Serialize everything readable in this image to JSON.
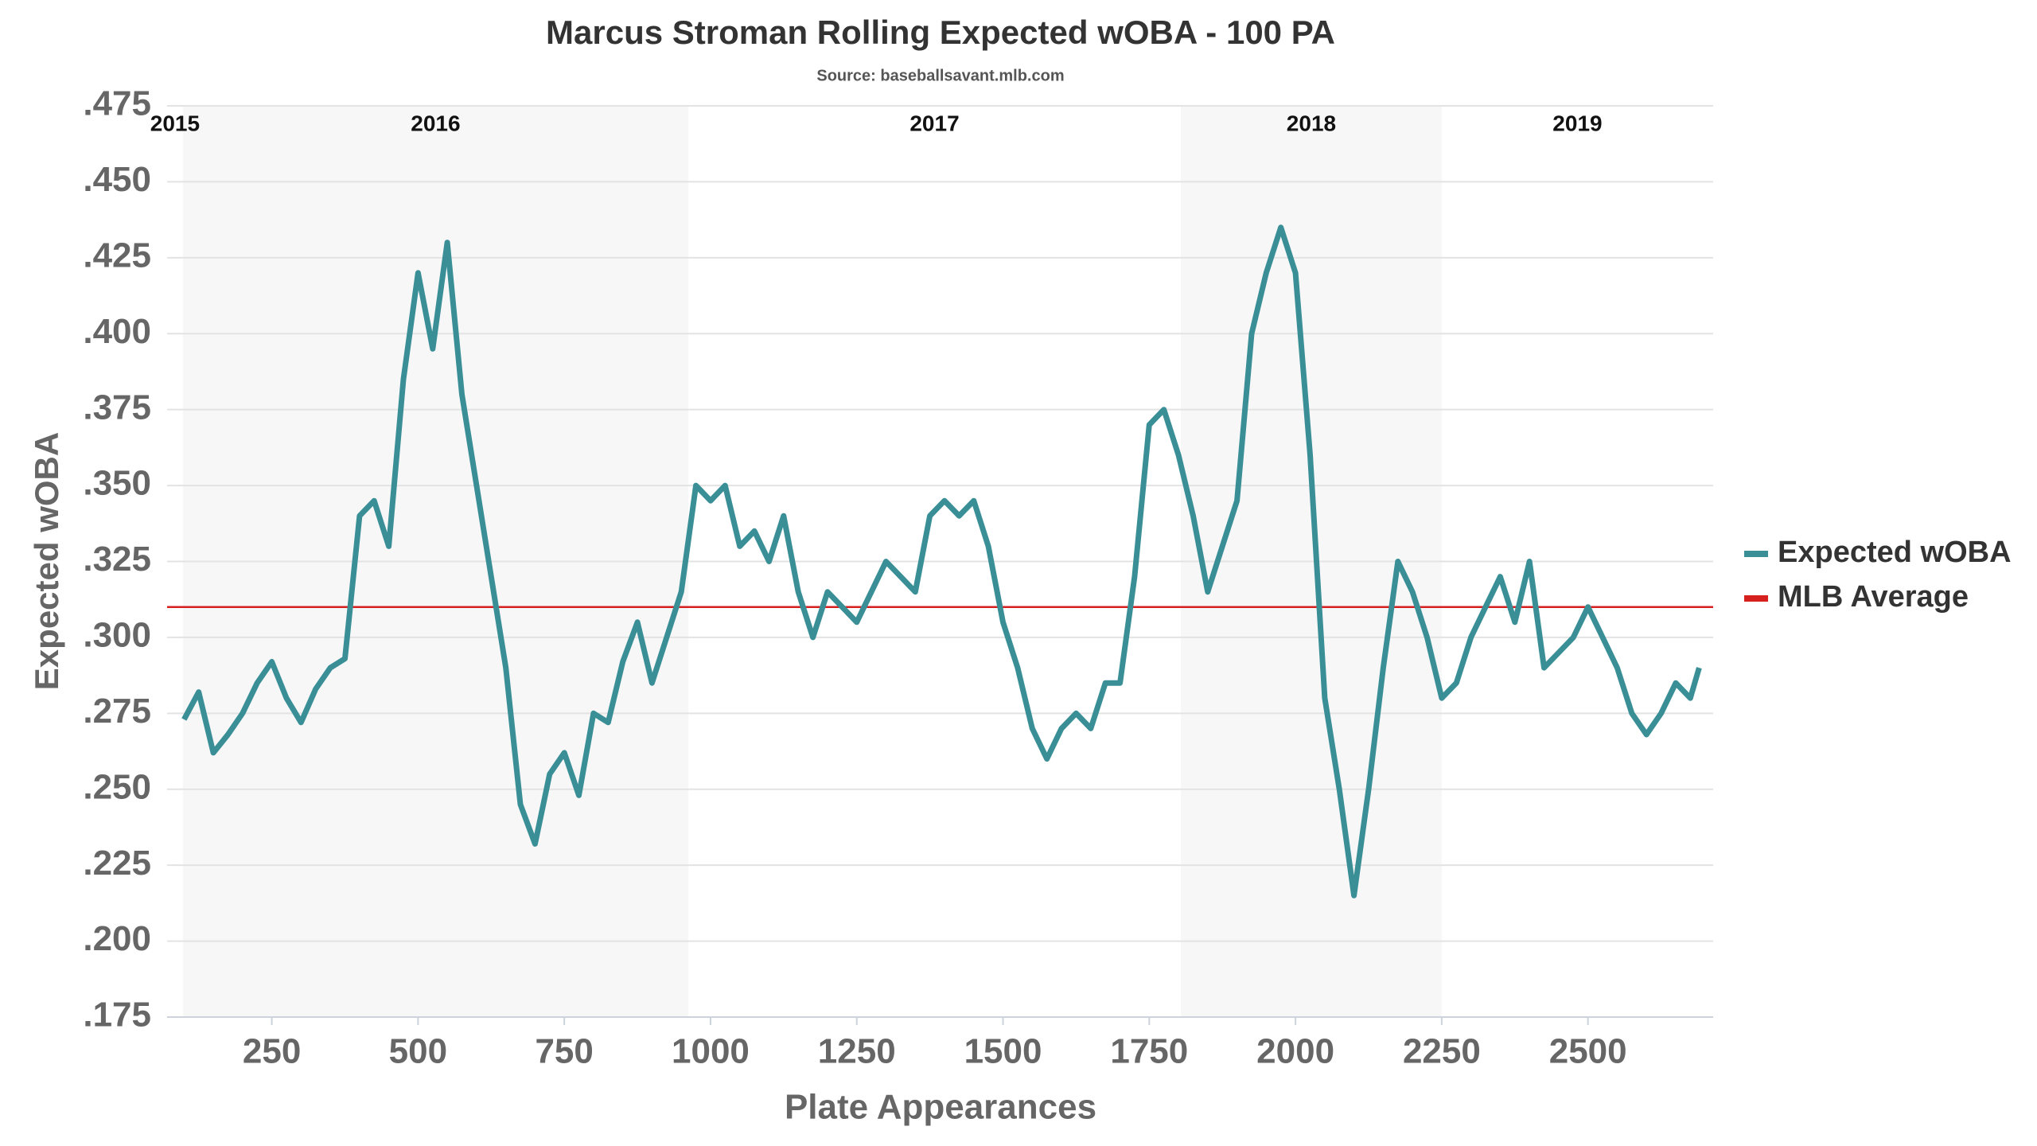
{
  "chart_data": {
    "type": "line",
    "title": "Marcus Stroman Rolling Expected wOBA - 100 PA",
    "subtitle": "Source: baseballsavant.mlb.com",
    "x_label": "Plate Appearances",
    "y_label": "Expected wOBA",
    "xlim": [
      71,
      2714
    ],
    "ylim": [
      0.175,
      0.475
    ],
    "xticks": [
      250,
      500,
      750,
      1000,
      1250,
      1500,
      1750,
      2000,
      2250,
      2500
    ],
    "yticks": [
      {
        "value": 0.175,
        "label": ".175"
      },
      {
        "value": 0.2,
        "label": ".200"
      },
      {
        "value": 0.225,
        "label": ".225"
      },
      {
        "value": 0.25,
        "label": ".250"
      },
      {
        "value": 0.275,
        "label": ".275"
      },
      {
        "value": 0.3,
        "label": ".300"
      },
      {
        "value": 0.325,
        "label": ".325"
      },
      {
        "value": 0.35,
        "label": ".350"
      },
      {
        "value": 0.375,
        "label": ".375"
      },
      {
        "value": 0.4,
        "label": ".400"
      },
      {
        "value": 0.425,
        "label": ".425"
      },
      {
        "value": 0.45,
        "label": ".450"
      },
      {
        "value": 0.475,
        "label": ".475"
      }
    ],
    "grid": true,
    "seasons": [
      {
        "label": "2015",
        "start": 71,
        "end": 98,
        "shaded": false
      },
      {
        "label": "2016",
        "start": 98,
        "end": 962,
        "shaded": true
      },
      {
        "label": "2017",
        "start": 962,
        "end": 1804,
        "shaded": false
      },
      {
        "label": "2018",
        "start": 1804,
        "end": 2250,
        "shaded": true
      },
      {
        "label": "2019",
        "start": 2250,
        "end": 2714,
        "shaded": false
      }
    ],
    "series": [
      {
        "name": "Expected wOBA",
        "color": "#3a8f97",
        "x": [
          100,
          125,
          150,
          175,
          200,
          225,
          250,
          275,
          300,
          325,
          350,
          375,
          400,
          425,
          450,
          475,
          500,
          525,
          550,
          575,
          600,
          625,
          650,
          675,
          700,
          725,
          750,
          775,
          800,
          825,
          850,
          875,
          900,
          925,
          950,
          975,
          1000,
          1025,
          1050,
          1075,
          1100,
          1125,
          1150,
          1175,
          1200,
          1225,
          1250,
          1275,
          1300,
          1325,
          1350,
          1375,
          1400,
          1425,
          1450,
          1475,
          1500,
          1525,
          1550,
          1575,
          1600,
          1625,
          1650,
          1675,
          1700,
          1725,
          1750,
          1775,
          1800,
          1825,
          1850,
          1875,
          1900,
          1925,
          1950,
          1975,
          2000,
          2025,
          2050,
          2075,
          2100,
          2125,
          2150,
          2175,
          2200,
          2225,
          2250,
          2275,
          2300,
          2325,
          2350,
          2375,
          2400,
          2425,
          2450,
          2475,
          2500,
          2525,
          2550,
          2575,
          2600,
          2625,
          2650,
          2675,
          2690
        ],
        "values": [
          0.273,
          0.282,
          0.262,
          0.268,
          0.275,
          0.285,
          0.292,
          0.28,
          0.272,
          0.283,
          0.29,
          0.293,
          0.34,
          0.345,
          0.33,
          0.385,
          0.42,
          0.395,
          0.43,
          0.38,
          0.35,
          0.32,
          0.29,
          0.245,
          0.232,
          0.255,
          0.262,
          0.248,
          0.275,
          0.272,
          0.292,
          0.305,
          0.285,
          0.3,
          0.315,
          0.35,
          0.345,
          0.35,
          0.33,
          0.335,
          0.325,
          0.34,
          0.315,
          0.3,
          0.315,
          0.31,
          0.305,
          0.315,
          0.325,
          0.32,
          0.315,
          0.34,
          0.345,
          0.34,
          0.345,
          0.33,
          0.305,
          0.29,
          0.27,
          0.26,
          0.27,
          0.275,
          0.27,
          0.285,
          0.285,
          0.32,
          0.37,
          0.375,
          0.36,
          0.34,
          0.315,
          0.33,
          0.345,
          0.4,
          0.42,
          0.435,
          0.42,
          0.36,
          0.28,
          0.25,
          0.215,
          0.25,
          0.29,
          0.325,
          0.315,
          0.3,
          0.28,
          0.285,
          0.3,
          0.31,
          0.32,
          0.305,
          0.325,
          0.29,
          0.295,
          0.3,
          0.31,
          0.3,
          0.29,
          0.275,
          0.268,
          0.275,
          0.285,
          0.28,
          0.29
        ]
      }
    ],
    "reference_lines": [
      {
        "name": "MLB Average",
        "color": "#d62020",
        "value": 0.31
      }
    ]
  }
}
